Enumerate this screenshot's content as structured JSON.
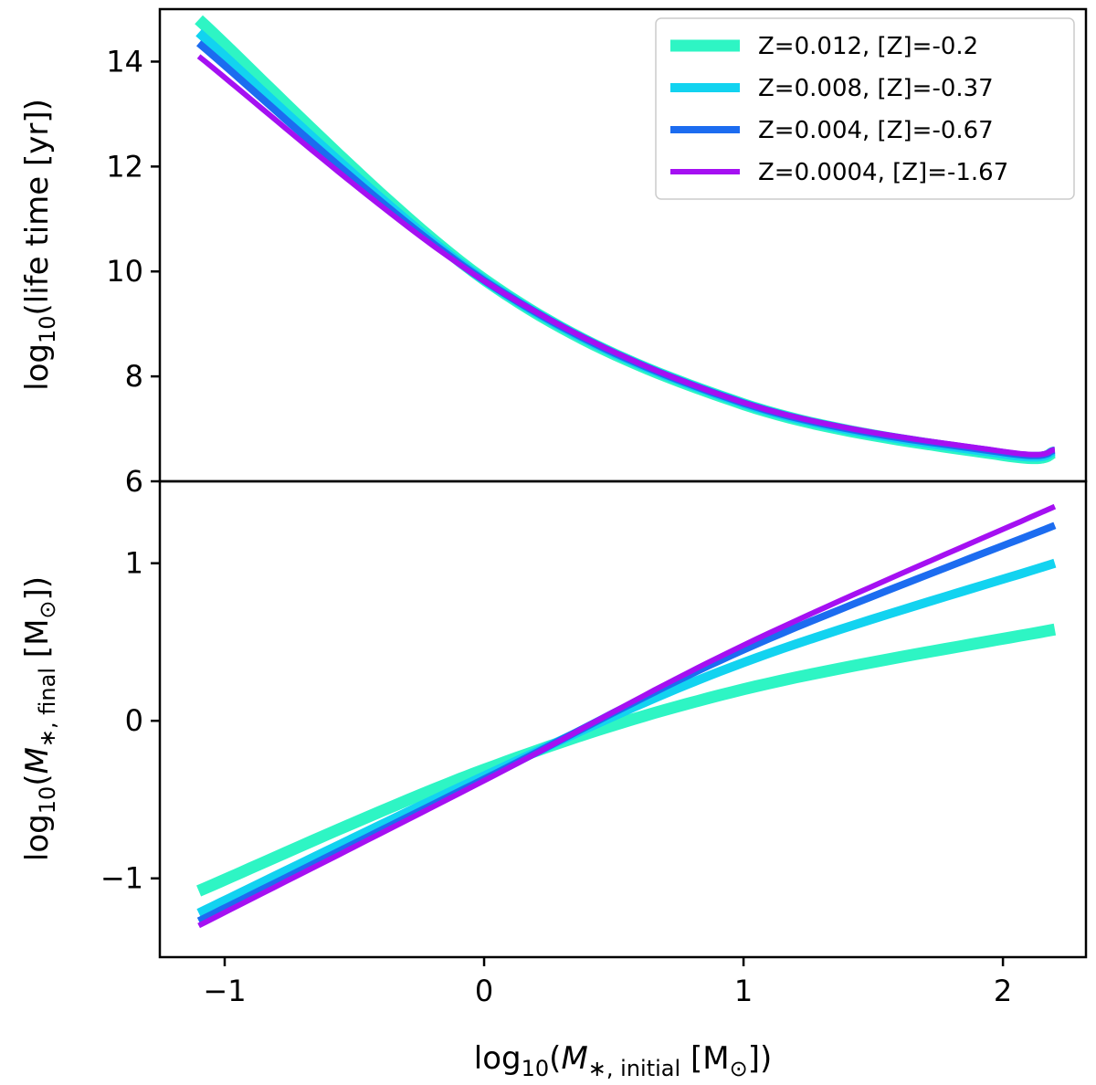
{
  "chart_data": [
    {
      "type": "line",
      "panel": "top",
      "ylabel": "log10(life time [yr])",
      "xlim": [
        -1.25,
        2.32
      ],
      "ylim": [
        6,
        15
      ],
      "yticks": [
        6,
        8,
        10,
        12,
        14
      ],
      "ytick_labels": [
        "6",
        "8",
        "10",
        "12",
        "14"
      ],
      "legend_location": "top-right",
      "series": [
        {
          "name": "Z=0.012, [Z]=-0.2",
          "color": "#2ef5c4",
          "x": [
            -1.1,
            0.0,
            1.0,
            2.0,
            2.2
          ],
          "y": [
            14.8,
            9.85,
            7.47,
            6.5,
            6.55
          ]
        },
        {
          "name": "Z=0.008, [Z]=-0.37",
          "color": "#12d3f0",
          "x": [
            -1.1,
            0.0,
            1.0,
            2.0,
            2.2
          ],
          "y": [
            14.55,
            9.84,
            7.48,
            6.52,
            6.57
          ]
        },
        {
          "name": "Z=0.004, [Z]=-0.67",
          "color": "#1c6cf0",
          "x": [
            -1.1,
            0.0,
            1.0,
            2.0,
            2.2
          ],
          "y": [
            14.35,
            9.83,
            7.49,
            6.55,
            6.59
          ]
        },
        {
          "name": "Z=0.0004, [Z]=-1.67",
          "color": "#a510f2",
          "x": [
            -1.1,
            0.0,
            1.0,
            2.0,
            2.2
          ],
          "y": [
            14.1,
            9.82,
            7.5,
            6.57,
            6.6
          ]
        }
      ]
    },
    {
      "type": "line",
      "panel": "bottom",
      "xlabel": "log10(M*, initial [M⊙])",
      "ylabel": "log10(M*, final [M⊙])",
      "xlim": [
        -1.25,
        2.32
      ],
      "ylim": [
        -1.5,
        1.52
      ],
      "xticks": [
        -1,
        0,
        1,
        2
      ],
      "xtick_labels": [
        "−1",
        "0",
        "1",
        "2"
      ],
      "yticks": [
        -1,
        0,
        1
      ],
      "ytick_labels": [
        "−1",
        "0",
        "1"
      ],
      "series": [
        {
          "name": "Z=0.012, [Z]=-0.2",
          "color": "#2ef5c4",
          "x": [
            -1.1,
            0.0,
            1.0,
            2.2
          ],
          "y": [
            -1.08,
            -0.31,
            0.2,
            0.58
          ]
        },
        {
          "name": "Z=0.008, [Z]=-0.37",
          "color": "#12d3f0",
          "x": [
            -1.1,
            0.0,
            1.0,
            2.2
          ],
          "y": [
            -1.22,
            -0.35,
            0.37,
            1.0
          ]
        },
        {
          "name": "Z=0.004, [Z]=-0.67",
          "color": "#1c6cf0",
          "x": [
            -1.1,
            0.0,
            1.0,
            2.2
          ],
          "y": [
            -1.27,
            -0.37,
            0.45,
            1.24
          ]
        },
        {
          "name": "Z=0.0004, [Z]=-1.67",
          "color": "#a510f2",
          "x": [
            -1.1,
            0.0,
            1.0,
            2.2
          ],
          "y": [
            -1.3,
            -0.38,
            0.48,
            1.36
          ]
        }
      ]
    }
  ]
}
